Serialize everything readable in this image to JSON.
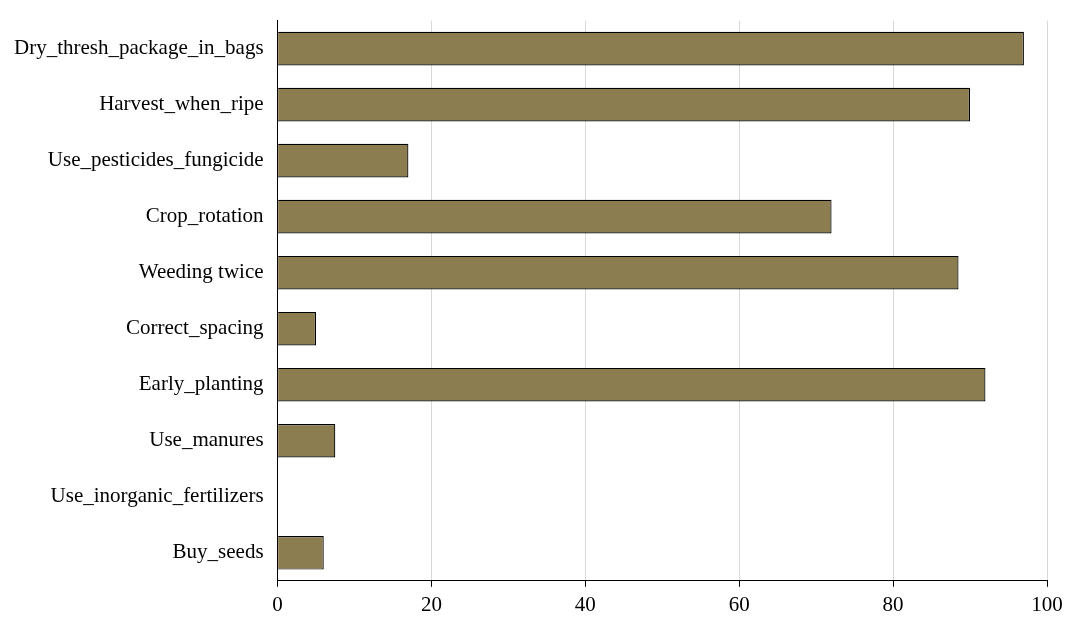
{
  "chart_data": {
    "type": "bar",
    "orientation": "horizontal",
    "categories": [
      "Dry_thresh_package_in_bags",
      "Harvest_when_ripe",
      "Use_pesticides_fungicide",
      "Crop_rotation",
      "Weeding twice",
      "Correct_spacing",
      "Early_planting",
      "Use_manures",
      "Use_inorganic_fertilizers",
      "Buy_seeds"
    ],
    "values": [
      97,
      90,
      17,
      72,
      88.5,
      5,
      92,
      7.5,
      0,
      6
    ],
    "color": "#8b7d4f",
    "xlim": [
      0,
      100
    ],
    "xticks": [
      0,
      20,
      40,
      60,
      80,
      100
    ],
    "grid": "x",
    "legend": false
  }
}
